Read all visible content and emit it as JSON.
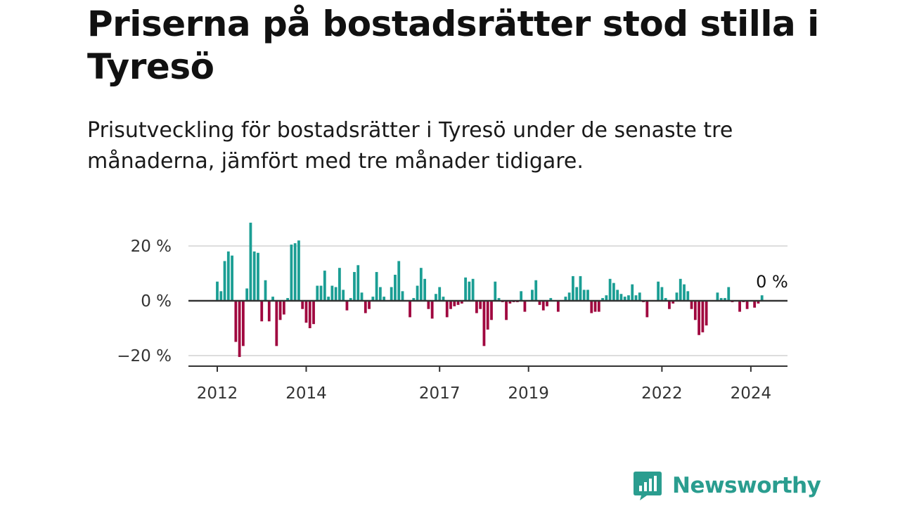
{
  "header": {
    "title": "Priserna på bostadsrätter stod stilla i Tyresö",
    "subtitle": "Prisutveckling för bostadsrätter i Tyresö under de senaste tre månaderna, jämfört med tre månader tidigare."
  },
  "brand": {
    "name": "Newsworthy"
  },
  "colors": {
    "positive": "#1b9e94",
    "negative": "#a0073f",
    "grid": "#dddddd",
    "axis": "#333333",
    "brand": "#2a9d8f"
  },
  "chart_data": {
    "type": "bar",
    "ylim": [
      -23,
      30
    ],
    "yticks": [
      {
        "value": 20,
        "label": "20 %"
      },
      {
        "value": 0,
        "label": "0 %"
      },
      {
        "value": -20,
        "label": "−20 %"
      }
    ],
    "xticks": [
      {
        "month": "2012-01",
        "label": "2012"
      },
      {
        "month": "2014-01",
        "label": "2014"
      },
      {
        "month": "2017-01",
        "label": "2017"
      },
      {
        "month": "2019-01",
        "label": "2019"
      },
      {
        "month": "2022-01",
        "label": "2022"
      },
      {
        "month": "2024-01",
        "label": "2024"
      }
    ],
    "last_label": "0 %",
    "start_month": "2012-01",
    "values": [
      7,
      3.5,
      14.5,
      18,
      16.5,
      -15,
      -20.5,
      -16.5,
      4.5,
      28.5,
      18,
      17.5,
      -7.5,
      7.5,
      -7.5,
      1.5,
      -16.5,
      -7,
      -5,
      1,
      20.5,
      21,
      22,
      -3,
      -8,
      -10,
      -8.5,
      5.5,
      5.5,
      11,
      1.5,
      5.5,
      5,
      12,
      4,
      -3.5,
      1,
      10.5,
      13,
      3,
      -4.5,
      -3,
      1.5,
      10.5,
      5,
      1.5,
      0,
      5,
      9.5,
      14.5,
      3.5,
      0,
      -6,
      1,
      5.5,
      12,
      8,
      -3,
      -6.5,
      2.5,
      5,
      1.5,
      -6,
      -3,
      -2,
      -1.5,
      -1,
      8.5,
      7,
      8,
      -4.5,
      -3,
      -16.5,
      -10.5,
      -7,
      7,
      1,
      -0.5,
      -7,
      -1,
      -0.5,
      -0.5,
      3.5,
      -4,
      0,
      4,
      7.5,
      -1.5,
      -3.5,
      -2,
      1,
      0,
      -4,
      0,
      1.5,
      3,
      9,
      5,
      9,
      4,
      4,
      -4.5,
      -4,
      -4,
      1,
      2,
      8,
      6.5,
      4,
      2.5,
      1.5,
      2,
      6,
      2,
      3,
      -0.5,
      -6,
      0,
      0,
      7,
      5,
      1,
      -3,
      -1,
      3,
      8,
      6,
      3.5,
      -3,
      -7,
      -12.5,
      -11.5,
      -9,
      0,
      0,
      3,
      1,
      1,
      5,
      -0.5,
      0,
      -4,
      -0.5,
      -3,
      0,
      -2.5,
      -1,
      2,
      0
    ]
  }
}
